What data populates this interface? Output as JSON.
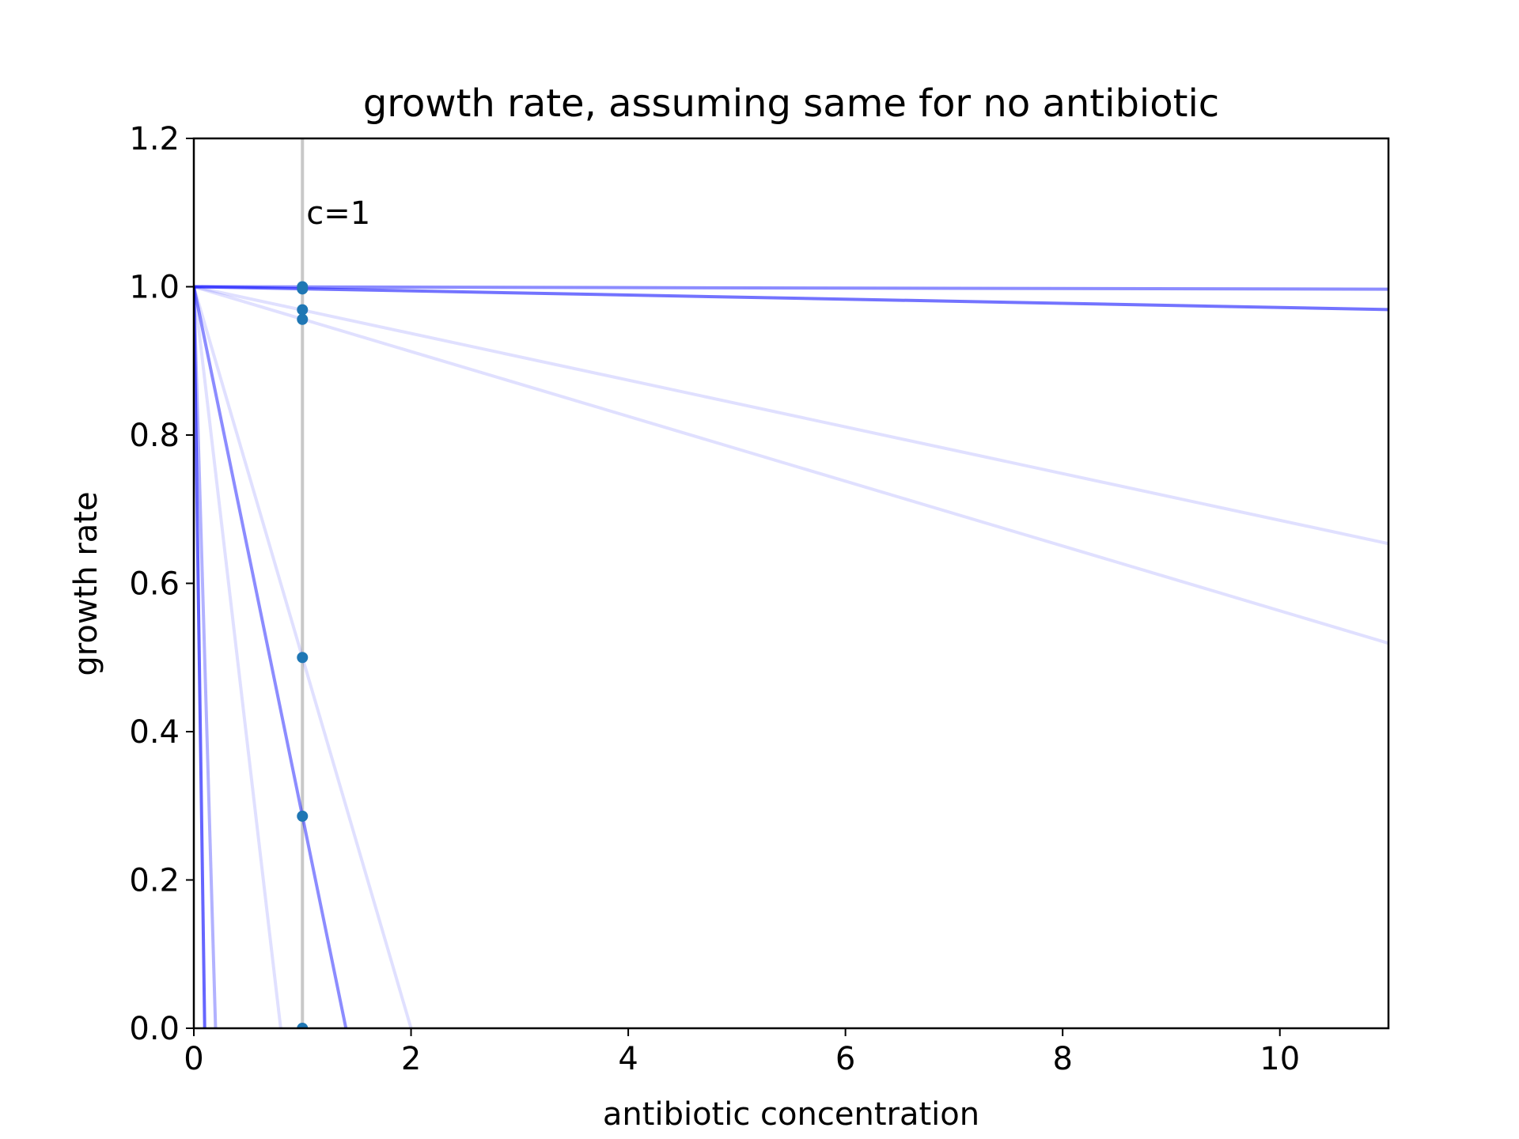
{
  "chart_data": {
    "type": "line",
    "title": "growth rate, assuming same for no antibiotic",
    "xlabel": "antibiotic concentration",
    "ylabel": "growth rate",
    "xlim": [
      0,
      11
    ],
    "ylim": [
      0,
      1.2
    ],
    "xticks": [
      0,
      2,
      4,
      6,
      8,
      10
    ],
    "yticks": [
      0.0,
      0.2,
      0.4,
      0.6,
      0.8,
      1.0,
      1.2
    ],
    "xtick_labels": [
      "0",
      "2",
      "4",
      "6",
      "8",
      "10"
    ],
    "ytick_labels": [
      "0.0",
      "0.2",
      "0.4",
      "0.6",
      "0.8",
      "1.0",
      "1.2"
    ],
    "grid": false,
    "line_color": "#0000ff",
    "point_color": "#1f77b4",
    "reference_line": {
      "x": 1,
      "color": "#c8c8c8",
      "label": "c=1"
    },
    "series": [
      {
        "intercept": 1.0,
        "slope": -0.0003,
        "opacity": 0.45
      },
      {
        "intercept": 1.0,
        "slope": -0.0028,
        "opacity": 0.55
      },
      {
        "intercept": 1.0,
        "slope": -0.0315,
        "opacity": 0.12
      },
      {
        "intercept": 1.0,
        "slope": -0.0437,
        "opacity": 0.12
      },
      {
        "intercept": 1.0,
        "slope": -0.5,
        "opacity": 0.12
      },
      {
        "intercept": 1.0,
        "slope": -0.714,
        "opacity": 0.45
      },
      {
        "intercept": 1.0,
        "slope": -1.25,
        "opacity": 0.12
      },
      {
        "intercept": 1.0,
        "slope": -5.0,
        "opacity": 0.3
      },
      {
        "intercept": 1.0,
        "slope": -10.0,
        "opacity": 0.6
      }
    ],
    "points": [
      {
        "x": 1,
        "y": 1.0
      },
      {
        "x": 1,
        "y": 0.997
      },
      {
        "x": 1,
        "y": 0.969
      },
      {
        "x": 1,
        "y": 0.956
      },
      {
        "x": 1,
        "y": 0.5
      },
      {
        "x": 1,
        "y": 0.286
      },
      {
        "x": 1,
        "y": 0.0
      }
    ]
  }
}
